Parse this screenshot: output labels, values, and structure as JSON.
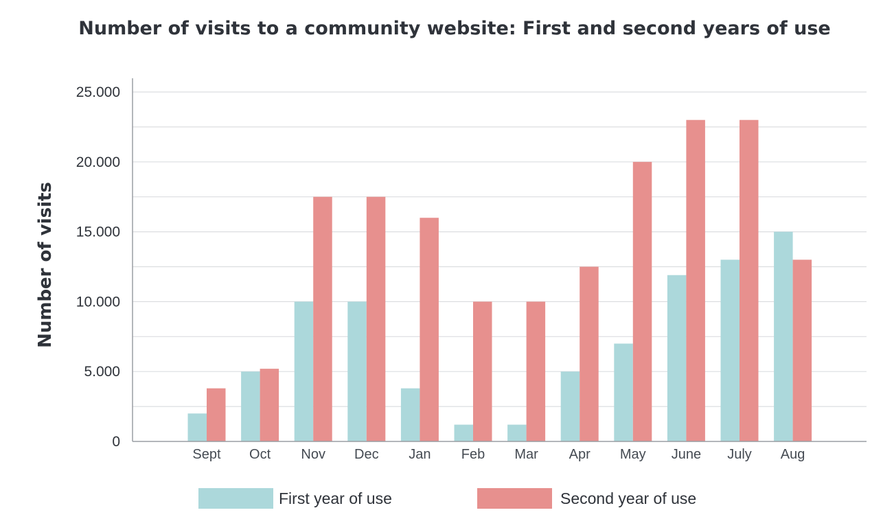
{
  "colors": {
    "first_year": "#acd8db",
    "second_year": "#e7908e",
    "text": "#2f333a"
  },
  "chart_data": {
    "type": "bar",
    "title": "Number of visits to a community website: First and second years of use",
    "xlabel": "",
    "ylabel": "Number of visits",
    "categories": [
      "Sept",
      "Oct",
      "Nov",
      "Dec",
      "Jan",
      "Feb",
      "Mar",
      "Apr",
      "May",
      "June",
      "July",
      "Aug"
    ],
    "series": [
      {
        "name": "First year of use",
        "values": [
          2000,
          5000,
          10000,
          10000,
          3800,
          1200,
          1200,
          5000,
          7000,
          11900,
          13000,
          15000
        ]
      },
      {
        "name": "Second year of use",
        "values": [
          3800,
          5200,
          17500,
          17500,
          16000,
          10000,
          10000,
          12500,
          20000,
          23000,
          23000,
          13000
        ]
      }
    ],
    "ylim": [
      0,
      25000
    ],
    "yticks": [
      0,
      5000,
      10000,
      15000,
      20000,
      25000
    ],
    "ytick_labels": [
      "0",
      "5.000",
      "10.000",
      "15.000",
      "20.000",
      "25.000"
    ],
    "grid_step": 2500,
    "grid": true,
    "legend_position": "bottom-center"
  }
}
